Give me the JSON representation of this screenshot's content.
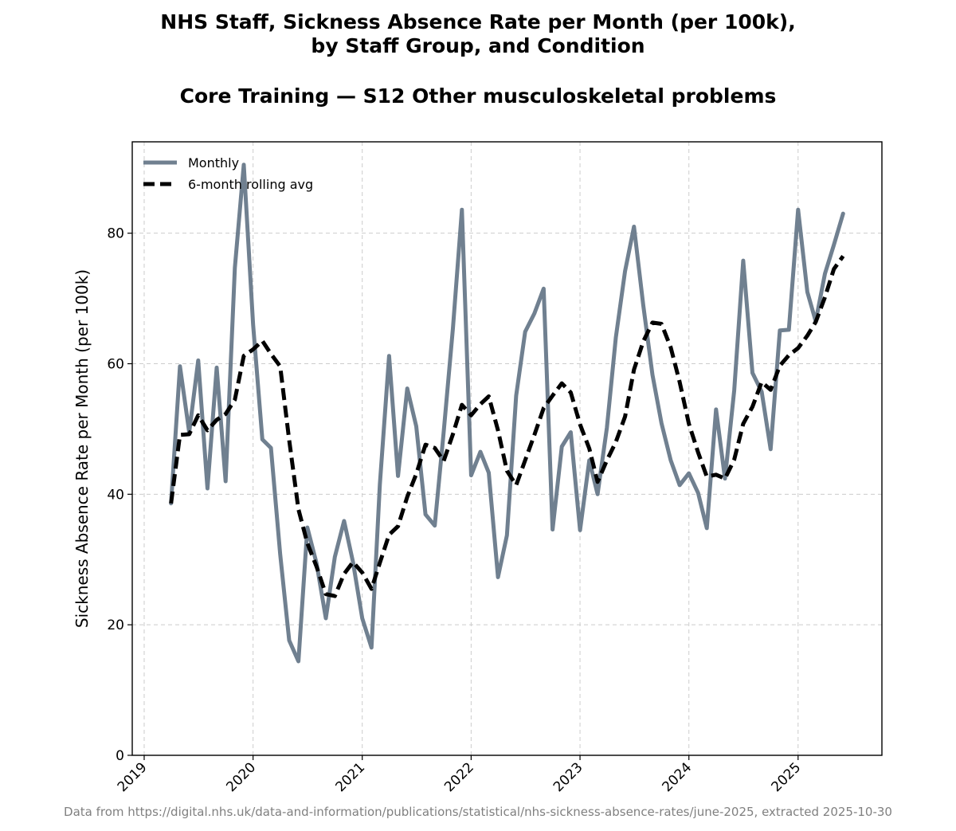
{
  "chart_data": {
    "type": "line",
    "title_lines": [
      "NHS Staff, Sickness Absence Rate per Month (per 100k),",
      "by Staff Group, and Condition"
    ],
    "subtitle": "Core Training — S12 Other musculoskeletal problems",
    "xlabel": "",
    "ylabel": "Sickness Absence Rate per Month (per 100k)",
    "x_ticks": [
      "2019",
      "2020",
      "2021",
      "2022",
      "2023",
      "2024",
      "2025"
    ],
    "y_ticks": [
      0,
      20,
      40,
      60,
      80
    ],
    "xlim": [
      "2018-11-22",
      "2025-10-09"
    ],
    "ylim": [
      0,
      94
    ],
    "grid": true,
    "legend_position": "top-left",
    "x": [
      "2019-04-01",
      "2019-05-01",
      "2019-06-01",
      "2019-07-01",
      "2019-08-01",
      "2019-09-01",
      "2019-10-01",
      "2019-11-01",
      "2019-12-01",
      "2020-01-01",
      "2020-02-01",
      "2020-03-01",
      "2020-04-01",
      "2020-05-01",
      "2020-06-01",
      "2020-07-01",
      "2020-08-01",
      "2020-09-01",
      "2020-10-01",
      "2020-11-01",
      "2020-12-01",
      "2021-01-01",
      "2021-02-01",
      "2021-03-01",
      "2021-04-01",
      "2021-05-01",
      "2021-06-01",
      "2021-07-01",
      "2021-08-01",
      "2021-09-01",
      "2021-10-01",
      "2021-11-01",
      "2021-12-01",
      "2022-01-01",
      "2022-02-01",
      "2022-03-01",
      "2022-04-01",
      "2022-05-01",
      "2022-06-01",
      "2022-07-01",
      "2022-08-01",
      "2022-09-01",
      "2022-10-01",
      "2022-11-01",
      "2022-12-01",
      "2023-01-01",
      "2023-02-01",
      "2023-03-01",
      "2023-04-01",
      "2023-05-01",
      "2023-06-01",
      "2023-07-01",
      "2023-08-01",
      "2023-09-01",
      "2023-10-01",
      "2023-11-01",
      "2023-12-01",
      "2024-01-01",
      "2024-02-01",
      "2024-03-01",
      "2024-04-01",
      "2024-05-01",
      "2024-06-01",
      "2024-07-01",
      "2024-08-01",
      "2024-09-01",
      "2024-10-01",
      "2024-11-01",
      "2024-12-01",
      "2025-01-01",
      "2025-02-01",
      "2025-03-01",
      "2025-04-01",
      "2025-05-01",
      "2025-06-01"
    ],
    "series": [
      {
        "name": "Monthly",
        "color": "#708090",
        "style": "solid",
        "values": [
          38.6,
          59.6,
          49.5,
          60.5,
          40.9,
          59.4,
          42.0,
          74.7,
          90.5,
          66.0,
          48.4,
          47.1,
          30.8,
          17.6,
          14.4,
          34.9,
          29.4,
          21.0,
          30.4,
          35.9,
          29.6,
          21.0,
          16.5,
          41.5,
          61.2,
          42.8,
          56.2,
          50.4,
          36.9,
          35.2,
          49.5,
          65.4,
          83.6,
          42.9,
          46.5,
          43.3,
          27.3,
          33.7,
          55.1,
          64.9,
          67.7,
          71.5,
          34.6,
          47.3,
          49.5,
          34.5,
          45.2,
          40.0,
          50.2,
          64.0,
          74.2,
          81.0,
          69.0,
          58.3,
          50.9,
          45.2,
          41.4,
          43.2,
          40.2,
          34.8,
          53.0,
          42.4,
          55.9,
          75.8,
          58.6,
          55.7,
          46.9,
          65.1,
          65.2,
          83.6,
          71.0,
          66.5,
          73.8,
          78.2,
          83.0
        ]
      },
      {
        "name": "6-month rolling avg",
        "color": "#000000",
        "style": "dashed",
        "values": [
          38.6,
          49.1,
          49.2,
          52.1,
          49.8,
          51.4,
          52.3,
          54.5,
          61.2,
          62.2,
          63.5,
          61.5,
          59.6,
          48.3,
          37.7,
          32.5,
          28.9,
          24.7,
          24.4,
          27.8,
          29.6,
          28.0,
          25.5,
          29.5,
          33.8,
          35.1,
          39.6,
          43.1,
          47.6,
          47.1,
          45.1,
          49.2,
          53.7,
          52.1,
          53.8,
          55.0,
          49.8,
          43.6,
          41.4,
          45.2,
          49.1,
          53.2,
          55.1,
          57.0,
          55.6,
          50.7,
          47.0,
          41.9,
          45.2,
          48.0,
          51.9,
          59.1,
          63.4,
          66.3,
          66.1,
          62.5,
          57.2,
          50.8,
          46.4,
          42.7,
          43.0,
          42.4,
          45.3,
          50.8,
          53.4,
          57.2,
          56.0,
          59.7,
          61.3,
          62.4,
          64.3,
          66.4,
          70.2,
          74.5,
          76.5
        ]
      }
    ]
  },
  "footer": "Data from https://digital.nhs.uk/data-and-information/publications/statistical/nhs-sickness-absence-rates/june-2025, extracted 2025-10-30"
}
